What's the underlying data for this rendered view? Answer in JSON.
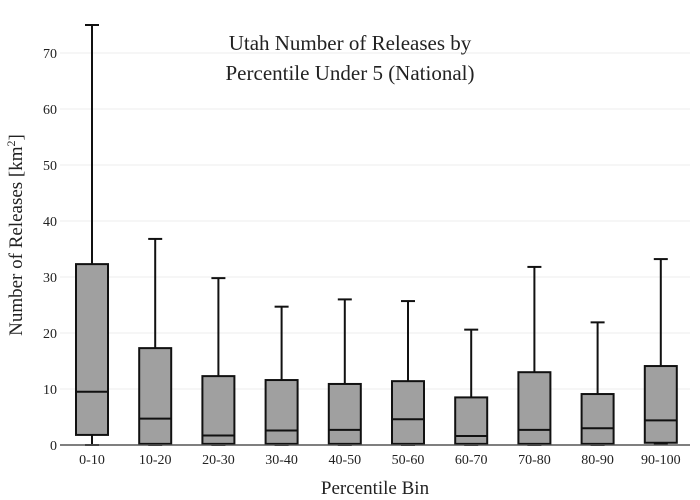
{
  "chart_data": {
    "type": "box",
    "title_lines": [
      "Utah Number of Releases by",
      "Percentile Under 5 (National)"
    ],
    "xlabel": "Percentile Bin",
    "ylabel_main": "Number of Releases  [km",
    "ylabel_sup": "2",
    "ylabel_close": "]",
    "ylim": [
      0,
      75
    ],
    "yticks": [
      0,
      10,
      20,
      30,
      40,
      50,
      60,
      70
    ],
    "grid": true,
    "categories": [
      "0-10",
      "10-20",
      "20-30",
      "30-40",
      "40-50",
      "50-60",
      "60-70",
      "70-80",
      "80-90",
      "90-100"
    ],
    "boxes": [
      {
        "min": 0.0,
        "q1": 1.8,
        "median": 9.5,
        "q3": 32.3,
        "max": 75.0
      },
      {
        "min": 0.0,
        "q1": 0.2,
        "median": 4.7,
        "q3": 17.3,
        "max": 36.8
      },
      {
        "min": 0.0,
        "q1": 0.2,
        "median": 1.7,
        "q3": 12.3,
        "max": 29.8
      },
      {
        "min": 0.0,
        "q1": 0.2,
        "median": 2.6,
        "q3": 11.6,
        "max": 24.7
      },
      {
        "min": 0.0,
        "q1": 0.2,
        "median": 2.7,
        "q3": 10.9,
        "max": 26.0
      },
      {
        "min": 0.0,
        "q1": 0.2,
        "median": 4.6,
        "q3": 11.4,
        "max": 25.7
      },
      {
        "min": 0.0,
        "q1": 0.2,
        "median": 1.6,
        "q3": 8.5,
        "max": 20.6
      },
      {
        "min": 0.0,
        "q1": 0.2,
        "median": 2.7,
        "q3": 13.0,
        "max": 31.8
      },
      {
        "min": 0.0,
        "q1": 0.2,
        "median": 3.0,
        "q3": 9.1,
        "max": 21.9
      },
      {
        "min": 0.2,
        "q1": 0.4,
        "median": 4.4,
        "q3": 14.1,
        "max": 33.2
      }
    ],
    "box_fill": "#a0a0a0",
    "line_color": "#111111",
    "grid_color": "#ececec"
  }
}
